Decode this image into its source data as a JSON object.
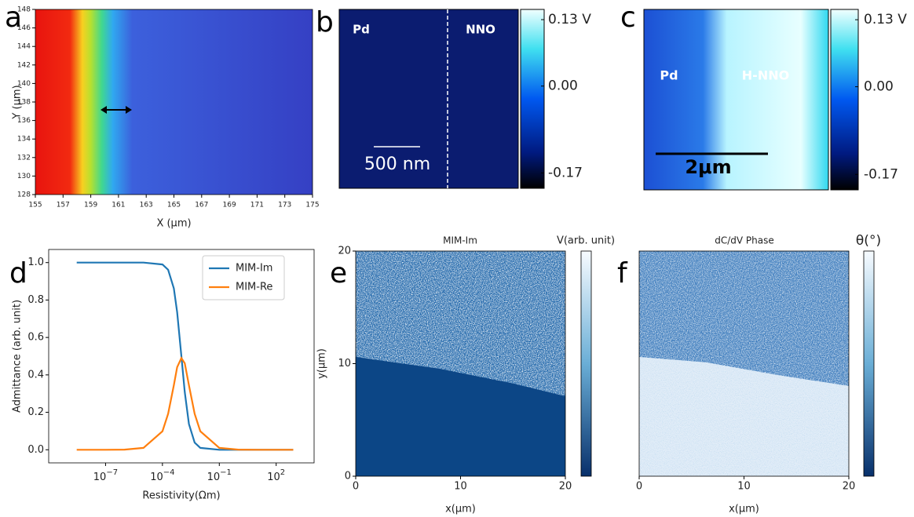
{
  "chart_data": [
    {
      "type": "heatmap",
      "panel": "a",
      "xlabel": "X (μm)",
      "ylabel": "Y (μm)",
      "xlim": [
        155,
        175
      ],
      "xticks": [
        155,
        157,
        159,
        161,
        163,
        165,
        167,
        169,
        171,
        173,
        175
      ],
      "ylim": [
        128,
        148
      ],
      "yticks": [
        128,
        130,
        132,
        134,
        136,
        138,
        140,
        142,
        144,
        146,
        148
      ]
    },
    {
      "type": "image",
      "panel": "b",
      "annotations": [
        "Pd",
        "NNO",
        "500 nm"
      ],
      "clim": [
        -0.2,
        0.15
      ],
      "cticks": [
        {
          "value": 0.13,
          "label": "0.13 V"
        },
        {
          "value": 0,
          "label": "0.00"
        },
        {
          "value": -0.17,
          "label": "-0.17"
        }
      ]
    },
    {
      "type": "image",
      "panel": "c",
      "annotations": [
        "Pd",
        "H-NNO",
        "2μm"
      ],
      "clim": [
        -0.2,
        0.15
      ],
      "cticks": [
        {
          "value": 0.13,
          "label": "0.13 V"
        },
        {
          "value": 0,
          "label": "0.00"
        },
        {
          "value": -0.17,
          "label": "-0.17"
        }
      ]
    },
    {
      "type": "line",
      "panel": "d",
      "xlabel": "Resistivity(Ωm)",
      "ylabel": "Admittance (arb. unit)",
      "log_x": true,
      "x": [
        3e-09,
        1e-08,
        1e-07,
        1e-06,
        1e-05,
        0.0001,
        0.0002,
        0.0004,
        0.0006,
        0.001,
        0.0015,
        0.0025,
        0.005,
        0.01,
        0.1,
        1,
        10,
        100,
        800
      ],
      "series": [
        {
          "name": "MIM-Im",
          "color": "#1f77b4",
          "values": [
            1,
            1,
            1,
            1,
            1,
            0.99,
            0.962,
            0.862,
            0.735,
            0.5,
            0.308,
            0.138,
            0.038,
            0.0099,
            0.0001,
            0,
            0,
            0,
            0
          ]
        },
        {
          "name": "MIM-Re",
          "color": "#ff7f0e",
          "values": [
            0,
            0,
            0,
            0.001,
            0.01,
            0.099,
            0.192,
            0.345,
            0.441,
            0.49,
            0.462,
            0.345,
            0.192,
            0.099,
            0.01,
            0.001,
            0,
            0,
            0
          ]
        }
      ],
      "xlim": [
        1e-10,
        10000.0
      ],
      "xticks": [
        {
          "value": 1e-07,
          "label": "10−7"
        },
        {
          "value": 0.0001,
          "label": "10−4"
        },
        {
          "value": 0.1,
          "label": "10−1"
        },
        {
          "value": 100,
          "label": "102"
        }
      ],
      "ylim": [
        -0.07,
        1.07
      ],
      "yticks": [
        {
          "value": 0,
          "label": "0.0"
        },
        0.2,
        0.4,
        0.6,
        0.8,
        {
          "value": 1,
          "label": "1.0"
        }
      ],
      "legend": "upper right"
    },
    {
      "type": "heatmap",
      "panel": "e",
      "title": "MIM-Im",
      "colorbar_label": "V(arb. unit)",
      "xlabel": "x(μm)",
      "ylabel": "y(μm)",
      "xlim": [
        0,
        20
      ],
      "xticks": [
        0,
        10,
        20
      ],
      "ylim": [
        0,
        20
      ],
      "yticks": [
        0,
        10,
        20
      ]
    },
    {
      "type": "heatmap",
      "panel": "f",
      "title": "dC/dV Phase",
      "colorbar_label": "θ(°)",
      "xlabel": "x(μm)",
      "xlim": [
        0,
        20
      ],
      "xticks": [
        0,
        10,
        20
      ]
    }
  ]
}
